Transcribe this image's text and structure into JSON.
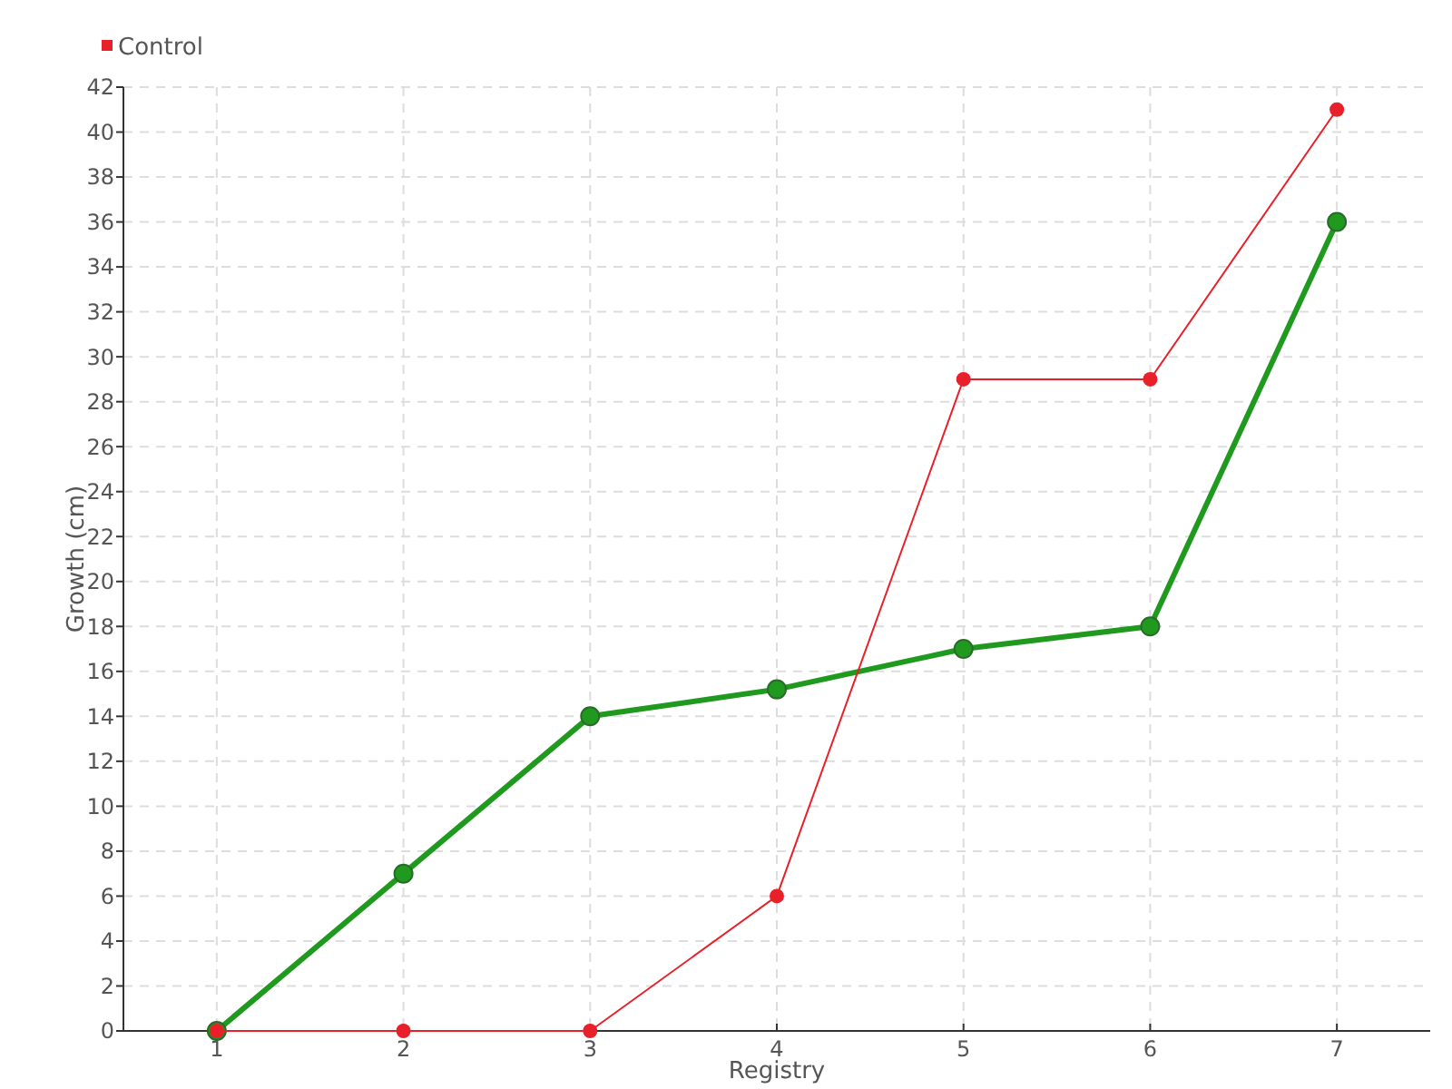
{
  "chart_data": {
    "type": "line",
    "xlabel": "Registry",
    "ylabel": "Growth (cm)",
    "categories": [
      "1",
      "2",
      "3",
      "4",
      "5",
      "6",
      "7"
    ],
    "series": [
      {
        "color": "#1f9a1f",
        "values": [
          0,
          7,
          14,
          15.2,
          17,
          18,
          36
        ]
      },
      {
        "name": "Control",
        "color": "#e8202a",
        "values": [
          0,
          0,
          0,
          6,
          29,
          29,
          41
        ]
      }
    ],
    "ylim": [
      0,
      42
    ],
    "yticks": [
      0,
      2,
      4,
      6,
      8,
      10,
      12,
      14,
      16,
      18,
      20,
      22,
      24,
      26,
      28,
      30,
      32,
      34,
      36,
      38,
      40,
      42
    ],
    "grid": true,
    "legend": "top left",
    "marker": "circle",
    "line_style": "solid"
  }
}
